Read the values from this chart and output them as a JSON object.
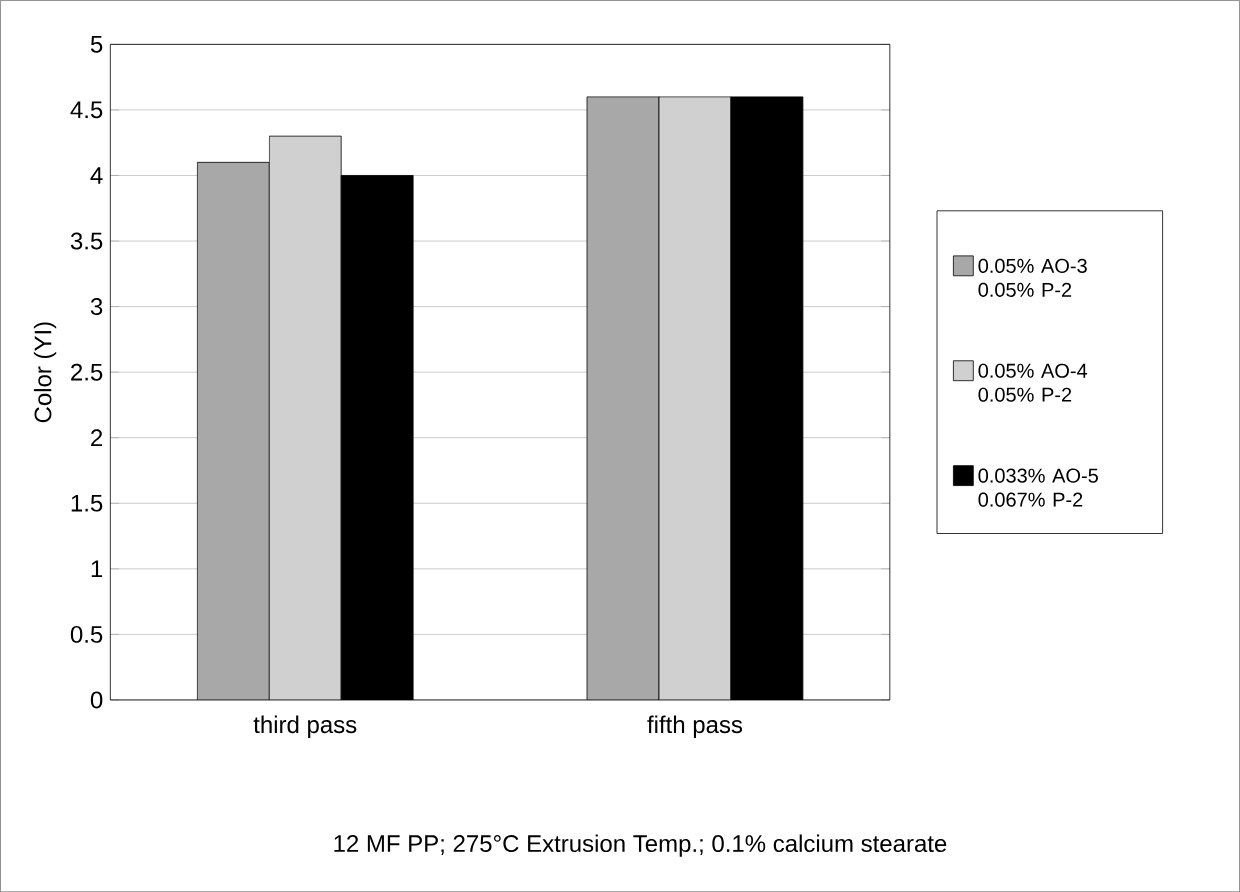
{
  "chart_data": {
    "type": "bar",
    "ylabel": "Color (YI)",
    "categories": [
      "third pass",
      "fifth pass"
    ],
    "series": [
      {
        "name": "0.05% AO-3 0.05% P-2",
        "color": "#a8a8a8",
        "values": [
          4.1,
          4.6
        ]
      },
      {
        "name": "0.05% AO-4 0.05% P-2",
        "color": "#d0d0d0",
        "values": [
          4.3,
          4.6
        ]
      },
      {
        "name": "0.033% AO-5 0.067% P-2",
        "color": "#000000",
        "values": [
          4.0,
          4.6
        ]
      }
    ],
    "ylim": [
      0,
      5
    ],
    "yticks": [
      0,
      0.5,
      1,
      1.5,
      2,
      2.5,
      3,
      3.5,
      4,
      4.5,
      5
    ],
    "grid": "y",
    "legend": "right",
    "annotations": [
      "12 MF PP; 275°C Extrusion Temp.; 0.1% calcium stearate"
    ]
  }
}
